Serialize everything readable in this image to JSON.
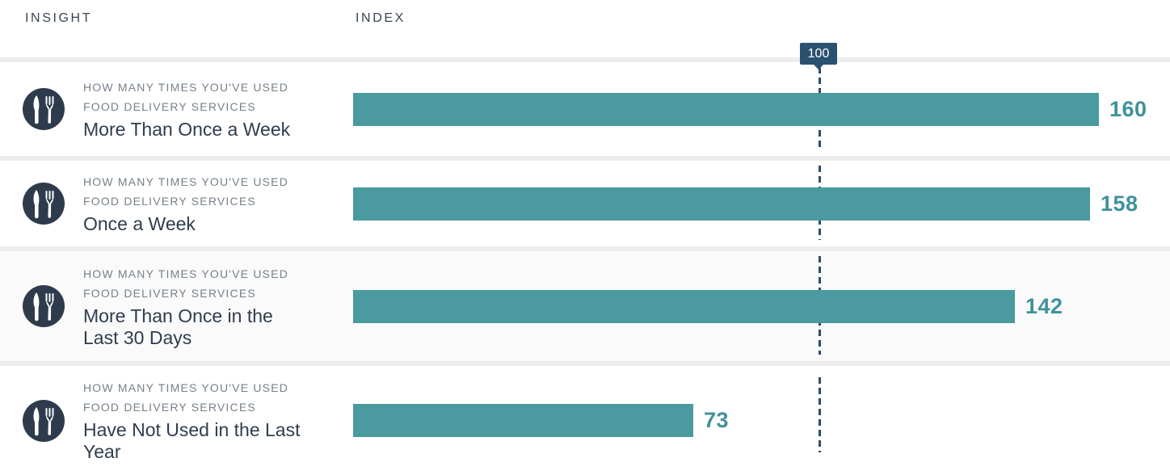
{
  "header": {
    "insight_label": "INSIGHT",
    "index_label": "INDEX"
  },
  "marker": {
    "value": "100"
  },
  "colors": {
    "bar": "#4a9aa0",
    "value_text": "#3f929b",
    "title_text": "#2e3d4e",
    "eyebrow_text": "#76808b",
    "marker_bg": "#2b5170",
    "dash_line": "#2d4b68",
    "separator": "#ededed",
    "alt_row_bg": "#fafafa"
  },
  "chart_data": {
    "type": "bar",
    "title": "How many times you've used food delivery services — index",
    "categories": [
      "More Than Once a Week",
      "Once a Week",
      "More Than Once in the Last 30 Days",
      "Have Not Used in the Last Year"
    ],
    "values": [
      160,
      158,
      142,
      73
    ],
    "reference_line": 100,
    "xlabel": "INDEX",
    "ylabel": "",
    "xlim": [
      0,
      175
    ],
    "grid": false,
    "legend": "none",
    "orientation": "horizontal"
  },
  "rows": [
    {
      "icon": "fork-knife-icon",
      "eyebrow": "HOW MANY TIMES YOU'VE USED\nFOOD DELIVERY SERVICES",
      "title": "More Than Once a Week",
      "value": "160"
    },
    {
      "icon": "fork-knife-icon",
      "eyebrow": "HOW MANY TIMES YOU'VE USED\nFOOD DELIVERY SERVICES",
      "title": "Once a Week",
      "value": "158"
    },
    {
      "icon": "fork-knife-icon",
      "eyebrow": "HOW MANY TIMES YOU'VE USED\nFOOD DELIVERY SERVICES",
      "title": "More Than Once in the\nLast 30 Days",
      "value": "142"
    },
    {
      "icon": "fork-knife-icon",
      "eyebrow": "HOW MANY TIMES YOU'VE USED\nFOOD DELIVERY SERVICES",
      "title": "Have Not Used in the Last\nYear",
      "value": "73"
    }
  ]
}
